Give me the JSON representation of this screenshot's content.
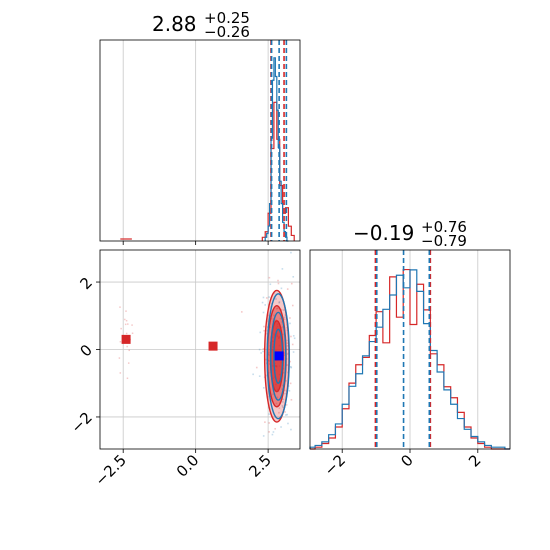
{
  "colors": {
    "blue": "#1f77b4",
    "red": "#d62728",
    "grid": "#c8c8c8"
  },
  "chart_data": [
    {
      "type": "histogram",
      "panel": "top-left",
      "title_main": "2.88",
      "title_sup": "+0.25",
      "title_sub": "−0.26",
      "xlim": [
        -3.3,
        3.6
      ],
      "median": 2.88,
      "quantile_lines_blue": [
        2.62,
        2.88,
        3.13
      ],
      "quantile_lines_red": [
        2.6,
        3.05
      ],
      "blue_hist": {
        "bins": [
          2.4,
          2.45,
          2.5,
          2.55,
          2.6,
          2.65,
          2.7,
          2.75,
          2.8,
          2.85,
          2.9,
          2.95,
          3.0,
          3.05,
          3.1,
          3.15,
          3.2
        ],
        "counts": [
          0.02,
          0.04,
          0.08,
          0.2,
          0.55,
          0.86,
          0.98,
          0.88,
          0.7,
          0.5,
          0.32,
          0.2,
          0.1,
          0.05,
          0.02,
          0.0
        ]
      },
      "red_hist": {
        "bins": [
          2.3,
          2.4,
          2.5,
          2.6,
          2.7,
          2.8,
          2.9,
          3.0,
          3.1,
          3.2,
          3.3,
          3.4
        ],
        "counts": [
          0.02,
          0.05,
          0.15,
          0.5,
          0.75,
          0.55,
          0.3,
          0.15,
          0.18,
          0.08,
          0.03
        ]
      },
      "red_left_bump": {
        "x": [
          -2.6,
          -2.2
        ],
        "height": 0.01
      }
    },
    {
      "type": "scatter-contour",
      "panel": "bottom-left",
      "xlim": [
        -3.3,
        3.6
      ],
      "ylim": [
        -2.95,
        2.95
      ],
      "xticks": [
        {
          "value": -2.5,
          "label": "−2.5"
        },
        {
          "value": 0.0,
          "label": "0.0"
        },
        {
          "value": 2.5,
          "label": "2.5"
        }
      ],
      "yticks": [
        {
          "value": -2,
          "label": "−2"
        },
        {
          "value": 0,
          "label": "0"
        },
        {
          "value": 2,
          "label": "2"
        }
      ],
      "red_markers": [
        {
          "x": -2.4,
          "y": 0.3
        },
        {
          "x": 0.6,
          "y": 0.1
        }
      ],
      "blue_marker": {
        "x": 2.88,
        "y": -0.19
      },
      "red_contours": [
        {
          "cx": 2.8,
          "cy": -0.2,
          "rx": 0.42,
          "ry": 1.95
        },
        {
          "cx": 2.8,
          "cy": -0.2,
          "rx": 0.32,
          "ry": 1.5
        },
        {
          "cx": 2.8,
          "cy": -0.2,
          "rx": 0.22,
          "ry": 1.05
        }
      ],
      "blue_contours": [
        {
          "cx": 2.85,
          "cy": -0.2,
          "rx": 0.38,
          "ry": 1.85
        },
        {
          "cx": 2.85,
          "cy": -0.2,
          "rx": 0.26,
          "ry": 1.3
        },
        {
          "cx": 2.85,
          "cy": -0.2,
          "rx": 0.15,
          "ry": 0.8
        }
      ]
    },
    {
      "type": "histogram",
      "panel": "bottom-right",
      "title_main": "−0.19",
      "title_sup": "+0.76",
      "title_sub": "−0.79",
      "xlim": [
        -2.95,
        2.95
      ],
      "xticks": [
        {
          "value": -2,
          "label": "−2"
        },
        {
          "value": 0,
          "label": "0"
        },
        {
          "value": 2,
          "label": "2"
        }
      ],
      "quantile_lines_blue": [
        -0.98,
        -0.19,
        0.57
      ],
      "quantile_lines_red": [
        -1.02,
        0.6
      ],
      "blue_hist": {
        "bins": [
          -3.0,
          -2.8,
          -2.6,
          -2.4,
          -2.2,
          -2.0,
          -1.8,
          -1.6,
          -1.4,
          -1.2,
          -1.0,
          -0.8,
          -0.6,
          -0.4,
          -0.2,
          0.0,
          0.2,
          0.4,
          0.6,
          0.8,
          1.0,
          1.2,
          1.4,
          1.6,
          1.8,
          2.0,
          2.2,
          2.4,
          2.6,
          2.8,
          3.0
        ],
        "counts": [
          0.01,
          0.02,
          0.04,
          0.08,
          0.14,
          0.25,
          0.35,
          0.42,
          0.52,
          0.6,
          0.68,
          0.78,
          0.86,
          0.97,
          0.9,
          1.0,
          0.88,
          0.7,
          0.55,
          0.43,
          0.33,
          0.25,
          0.17,
          0.11,
          0.07,
          0.04,
          0.02,
          0.01,
          0.01,
          0.0
        ]
      },
      "red_hist": {
        "bins": [
          -3.0,
          -2.8,
          -2.6,
          -2.4,
          -2.2,
          -2.0,
          -1.8,
          -1.6,
          -1.4,
          -1.2,
          -1.0,
          -0.8,
          -0.6,
          -0.4,
          -0.2,
          0.0,
          0.2,
          0.4,
          0.6,
          0.8,
          1.0,
          1.2,
          1.4,
          1.6,
          1.8,
          2.0,
          2.2,
          2.4,
          2.6,
          2.8,
          3.0
        ],
        "counts": [
          0.0,
          0.01,
          0.03,
          0.06,
          0.12,
          0.22,
          0.36,
          0.46,
          0.5,
          0.62,
          0.75,
          0.58,
          0.94,
          0.72,
          0.98,
          0.68,
          0.9,
          0.76,
          0.52,
          0.46,
          0.34,
          0.28,
          0.2,
          0.12,
          0.06,
          0.03,
          0.01,
          0.0,
          0.0,
          0.0
        ]
      }
    }
  ]
}
